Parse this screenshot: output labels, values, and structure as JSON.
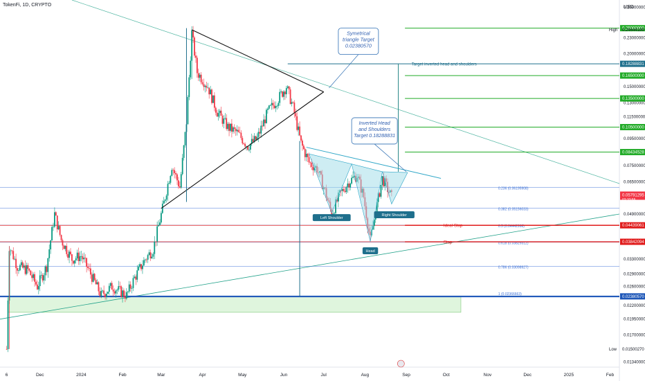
{
  "header": {
    "title": "TokenFi, 1D, CRYPTO",
    "currency": "USD"
  },
  "colors": {
    "up": "#089981",
    "down": "#f23645",
    "fib": "#3b6fd6",
    "green": "#22ab28",
    "red": "#e01b1b",
    "teal": "#1e6f8c",
    "blue": "#1e57b8",
    "black": "#111111",
    "box": "#b8e8b4",
    "tri": "#9edbe8"
  },
  "chart_data": {
    "type": "candlestick",
    "symbol": "TokenFi",
    "interval": "1D",
    "exchange": "CRYPTO",
    "y_scale": "log",
    "ylim": [
      0.0128,
      0.32
    ],
    "x_range": [
      "2023-11-01",
      "2025-02-08"
    ],
    "x_tick_labels": [
      {
        "date": "2023-11-06",
        "label": "6"
      },
      {
        "date": "2023-12-01",
        "label": "Dec"
      },
      {
        "date": "2024-01-01",
        "label": "2024"
      },
      {
        "date": "2024-02-01",
        "label": "Feb"
      },
      {
        "date": "2024-03-01",
        "label": "Mar"
      },
      {
        "date": "2024-04-01",
        "label": "Apr"
      },
      {
        "date": "2024-05-01",
        "label": "May"
      },
      {
        "date": "2024-06-01",
        "label": "Jun"
      },
      {
        "date": "2024-07-01",
        "label": "Jul"
      },
      {
        "date": "2024-08-01",
        "label": "Aug"
      },
      {
        "date": "2024-09-01",
        "label": "Sep"
      },
      {
        "date": "2024-10-01",
        "label": "Oct"
      },
      {
        "date": "2024-11-01",
        "label": "Nov"
      },
      {
        "date": "2024-12-01",
        "label": "Dec"
      },
      {
        "date": "2025-01-01",
        "label": "2025"
      },
      {
        "date": "2025-02-01",
        "label": "Feb"
      }
    ],
    "y_tick_labels": [
      "0.30000000",
      "0.23000000",
      "0.20000000",
      "0.15000000",
      "0.13000000",
      "0.11500000",
      "0.09500000",
      "0.07500000",
      "0.06500000",
      "0.04900000",
      "0.03300000",
      "0.02900000",
      "0.02600000",
      "0.02200000",
      "0.01950000",
      "0.01700000",
      "0.01340000"
    ],
    "price_path": [
      [
        "2023-11-06",
        0.015
      ],
      [
        "2023-11-08",
        0.037
      ],
      [
        "2023-11-14",
        0.031
      ],
      [
        "2023-11-22",
        0.03
      ],
      [
        "2023-11-29",
        0.026
      ],
      [
        "2023-12-06",
        0.031
      ],
      [
        "2023-12-12",
        0.049
      ],
      [
        "2023-12-17",
        0.039
      ],
      [
        "2023-12-25",
        0.033
      ],
      [
        "2024-01-01",
        0.034
      ],
      [
        "2024-01-08",
        0.029
      ],
      [
        "2024-01-16",
        0.024
      ],
      [
        "2024-01-24",
        0.026
      ],
      [
        "2024-02-04",
        0.024
      ],
      [
        "2024-02-10",
        0.028
      ],
      [
        "2024-02-18",
        0.033
      ],
      [
        "2024-02-24",
        0.036
      ],
      [
        "2024-03-03",
        0.054
      ],
      [
        "2024-03-09",
        0.075
      ],
      [
        "2024-03-15",
        0.062
      ],
      [
        "2024-03-20",
        0.11
      ],
      [
        "2024-03-24",
        0.24
      ],
      [
        "2024-03-28",
        0.17
      ],
      [
        "2024-04-05",
        0.15
      ],
      [
        "2024-04-12",
        0.12
      ],
      [
        "2024-04-20",
        0.105
      ],
      [
        "2024-04-27",
        0.1
      ],
      [
        "2024-05-05",
        0.089
      ],
      [
        "2024-05-12",
        0.095
      ],
      [
        "2024-05-20",
        0.12
      ],
      [
        "2024-05-28",
        0.135
      ],
      [
        "2024-06-03",
        0.15
      ],
      [
        "2024-06-08",
        0.125
      ],
      [
        "2024-06-14",
        0.091
      ],
      [
        "2024-06-20",
        0.077
      ],
      [
        "2024-06-26",
        0.073
      ],
      [
        "2024-07-02",
        0.06
      ],
      [
        "2024-07-07",
        0.049
      ],
      [
        "2024-07-13",
        0.058
      ],
      [
        "2024-07-20",
        0.065
      ],
      [
        "2024-07-26",
        0.069
      ],
      [
        "2024-07-31",
        0.057
      ],
      [
        "2024-08-05",
        0.039
      ],
      [
        "2024-08-10",
        0.053
      ],
      [
        "2024-08-14",
        0.067
      ],
      [
        "2024-08-18",
        0.061
      ],
      [
        "2024-08-21",
        0.057
      ]
    ],
    "overlays": {
      "fib_levels": [
        {
          "ratio": "0.236",
          "label": "0.236 (0.06195908)",
          "value": 0.06195908
        },
        {
          "ratio": "0.382",
          "label": "0.382 (0.05156033)",
          "value": 0.05156033
        },
        {
          "ratio": "0.5",
          "label": "0.5 (0.04442998)",
          "value": 0.04442998
        },
        {
          "ratio": "0.618",
          "label": "0.618 (0.03829312)",
          "value": 0.03829312
        },
        {
          "ratio": "0.786",
          "label": "0.786 (0.03098927)",
          "value": 0.03098927
        },
        {
          "ratio": "1",
          "label": "1 (0.02366663)",
          "value": 0.02366663
        }
      ],
      "green_targets": [
        0.25,
        0.165,
        0.135,
        0.105,
        0.08434528
      ],
      "stops": [
        {
          "label": "Ideal-Stop",
          "value": 0.04439061
        },
        {
          "label": "Stop",
          "value": 0.03842094
        }
      ],
      "target_line": {
        "label": "Target inverted head and shoulders",
        "value": 0.18288831
      },
      "support_line": 0.0238057,
      "annotations": [
        "Symetrical triangle Target 0.02380570",
        "Inverted Head and Shoulders Target 0.18288831"
      ],
      "pattern_labels": [
        "Left Shoulder",
        "Head",
        "Right Shoulder"
      ],
      "high_label": "High",
      "low_label": "Low"
    },
    "price_axis_tags": [
      {
        "label": "0.25000000",
        "value": 0.25,
        "color": "#22ab28"
      },
      {
        "label": "0.24644189",
        "value": 0.24644189,
        "color": "#ffffff",
        "high": true
      },
      {
        "label": "0.18288831",
        "value": 0.18288831,
        "color": "#1e6f8c"
      },
      {
        "label": "0.16500000",
        "value": 0.165,
        "color": "#22ab28"
      },
      {
        "label": "0.13500000",
        "value": 0.135,
        "color": "#22ab28"
      },
      {
        "label": "0.10500000",
        "value": 0.105,
        "color": "#22ab28"
      },
      {
        "label": "0.08434528",
        "value": 0.08434528,
        "color": "#22ab28"
      },
      {
        "label": "0.05791295",
        "value": 0.05791295,
        "color": "#f23645",
        "sub": "02:33:55"
      },
      {
        "label": "0.04439061",
        "value": 0.04439061,
        "color": "#e01b1b"
      },
      {
        "label": "0.03842094",
        "value": 0.03842094,
        "color": "#e01b1b"
      },
      {
        "label": "0.02380570",
        "value": 0.0238057,
        "color": "#1e57b8"
      },
      {
        "label": "0.01500270",
        "value": 0.0150027,
        "color": "#ffffff",
        "low": true
      }
    ]
  }
}
